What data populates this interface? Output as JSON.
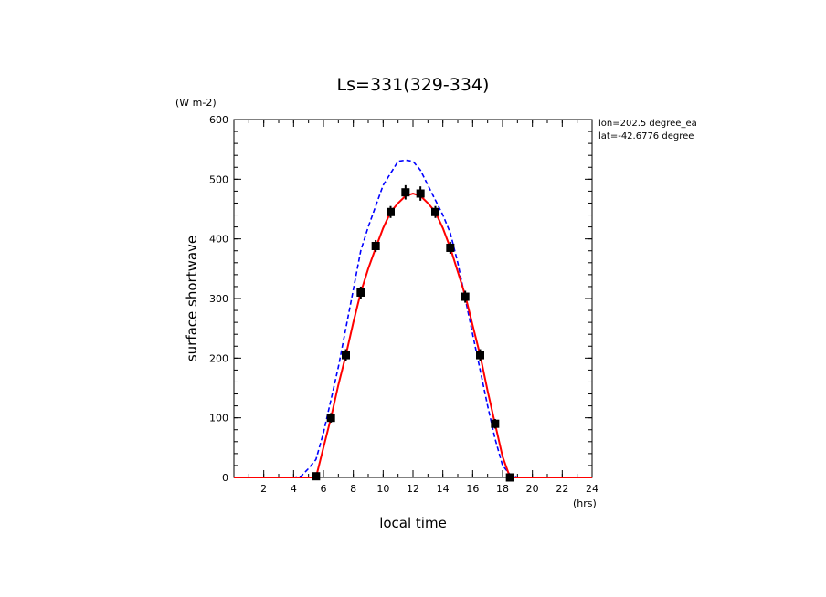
{
  "chart_data": {
    "type": "line",
    "title": "Ls=331(329-334)",
    "xlabel": "local time",
    "xunit": "(hrs)",
    "ylabel": "surface shortwave",
    "yunit": "(W m-2)",
    "xlim": [
      0,
      24
    ],
    "ylim": [
      0,
      600
    ],
    "xticks": [
      2,
      4,
      6,
      8,
      10,
      12,
      14,
      16,
      18,
      20,
      22,
      24
    ],
    "yticks": [
      0,
      100,
      200,
      300,
      400,
      500,
      600
    ],
    "annotations": [
      "lon=202.5 degree_ea",
      "lat=-42.6776 degree"
    ],
    "series": [
      {
        "style": "dashed",
        "color": "#0000ff",
        "x": [
          0,
          1,
          2,
          3,
          4,
          4.5,
          5,
          5.5,
          6,
          6.5,
          7,
          7.5,
          8,
          8.5,
          9,
          9.5,
          10,
          10.5,
          11,
          11.5,
          12,
          12.5,
          13,
          13.5,
          14,
          14.5,
          15,
          15.5,
          16,
          16.5,
          17,
          17.5,
          18,
          18.5,
          19,
          19.5,
          20,
          21,
          22,
          23,
          24
        ],
        "y": [
          0,
          0,
          0,
          0,
          0,
          2,
          15,
          30,
          75,
          130,
          185,
          250,
          315,
          380,
          420,
          455,
          490,
          510,
          530,
          532,
          530,
          515,
          490,
          465,
          440,
          410,
          360,
          300,
          240,
          180,
          120,
          65,
          20,
          5,
          0,
          0,
          0,
          0,
          0,
          0,
          0
        ]
      },
      {
        "style": "solid",
        "color": "#ff0000",
        "x": [
          0,
          1,
          2,
          3,
          4,
          5,
          5.5,
          6,
          6.5,
          7,
          7.5,
          8,
          8.5,
          9,
          9.5,
          10,
          10.5,
          11,
          11.5,
          12,
          12.5,
          13,
          13.5,
          14,
          14.5,
          15,
          15.5,
          16,
          16.5,
          17,
          17.5,
          18,
          18.5,
          19,
          20,
          21,
          22,
          23,
          24
        ],
        "y": [
          0,
          0,
          0,
          0,
          0,
          0,
          0,
          50,
          100,
          155,
          205,
          260,
          310,
          350,
          385,
          418,
          445,
          460,
          472,
          476,
          472,
          460,
          445,
          418,
          385,
          345,
          305,
          255,
          205,
          145,
          90,
          35,
          0,
          0,
          0,
          0,
          0,
          0,
          0
        ]
      }
    ],
    "observations": {
      "color": "#000000",
      "x": [
        5.5,
        6.5,
        7.5,
        8.5,
        9.5,
        10.5,
        11.5,
        12.5,
        13.5,
        14.5,
        15.5,
        16.5,
        17.5,
        18.5
      ],
      "y": [
        2,
        100,
        205,
        310,
        388,
        445,
        478,
        476,
        445,
        385,
        303,
        205,
        90,
        0
      ],
      "err": [
        6,
        8,
        10,
        10,
        10,
        10,
        12,
        12,
        10,
        10,
        10,
        10,
        8,
        6
      ]
    }
  }
}
